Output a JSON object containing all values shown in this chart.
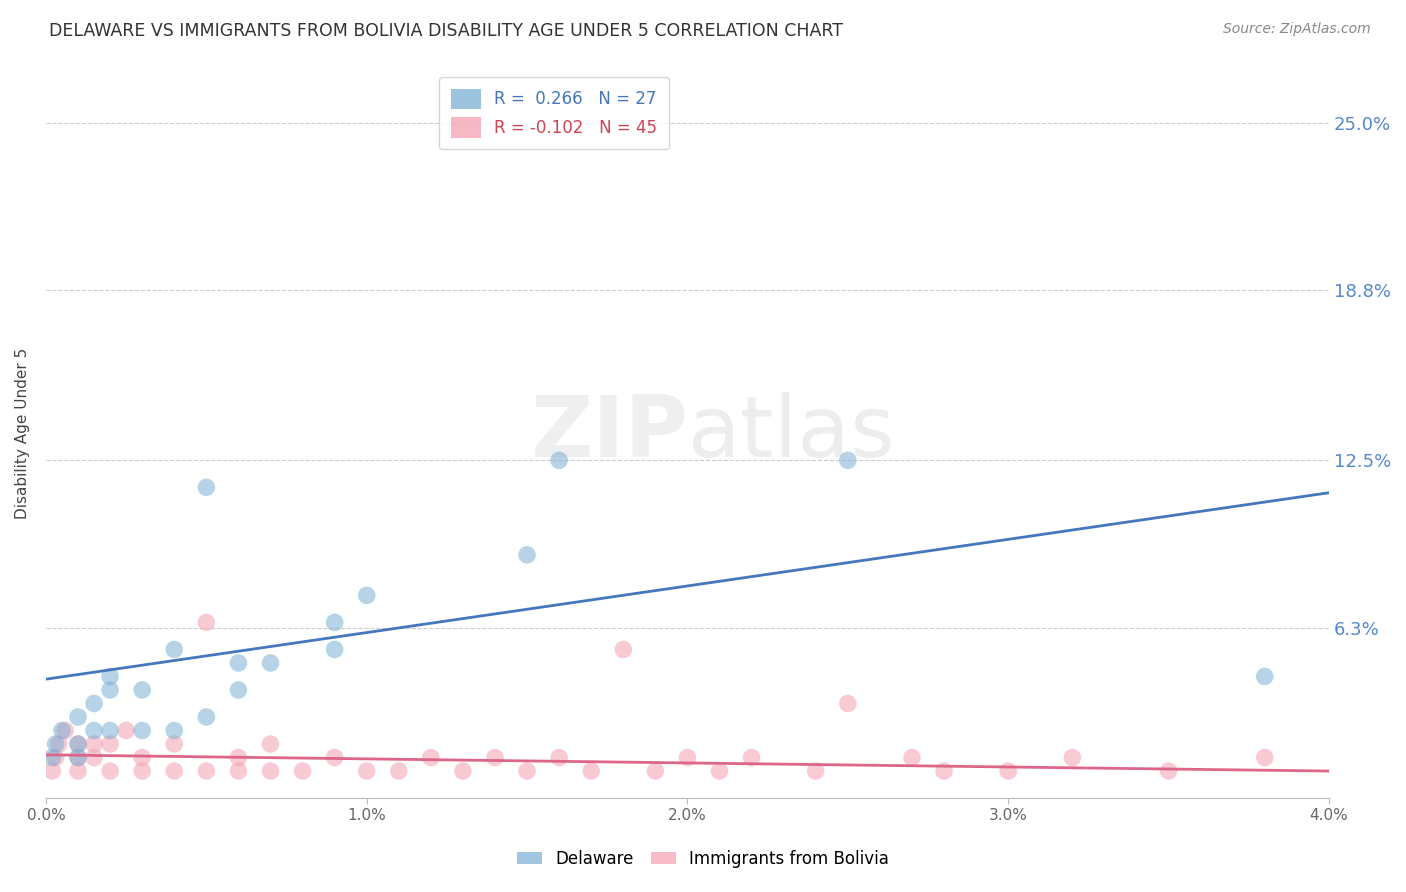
{
  "title": "DELAWARE VS IMMIGRANTS FROM BOLIVIA DISABILITY AGE UNDER 5 CORRELATION CHART",
  "source": "Source: ZipAtlas.com",
  "ylabel": "Disability Age Under 5",
  "xlim": [
    0.0,
    0.04
  ],
  "ylim": [
    0.0,
    0.27
  ],
  "xticks": [
    0.0,
    0.01,
    0.02,
    0.03,
    0.04
  ],
  "xtick_labels": [
    "0.0%",
    "1.0%",
    "2.0%",
    "3.0%",
    "4.0%"
  ],
  "ytick_labels_right": [
    "25.0%",
    "18.8%",
    "12.5%",
    "6.3%"
  ],
  "ytick_vals_right": [
    0.25,
    0.188,
    0.125,
    0.063
  ],
  "blue_color": "#7BAFD4",
  "pink_color": "#F4A0B0",
  "line_blue": "#4477BB",
  "line_pink": "#DD6688",
  "blue_line_x": [
    0.0,
    0.04
  ],
  "blue_line_y": [
    0.044,
    0.113
  ],
  "pink_line_x": [
    0.0,
    0.04
  ],
  "pink_line_y": [
    0.016,
    0.01
  ],
  "blue_scatter_x": [
    0.0002,
    0.0003,
    0.0005,
    0.001,
    0.001,
    0.001,
    0.0015,
    0.0015,
    0.002,
    0.002,
    0.002,
    0.003,
    0.003,
    0.004,
    0.004,
    0.005,
    0.005,
    0.006,
    0.006,
    0.007,
    0.009,
    0.009,
    0.01,
    0.015,
    0.016,
    0.025,
    0.038
  ],
  "blue_scatter_y": [
    0.015,
    0.02,
    0.025,
    0.015,
    0.02,
    0.03,
    0.025,
    0.035,
    0.025,
    0.04,
    0.045,
    0.025,
    0.04,
    0.025,
    0.055,
    0.03,
    0.115,
    0.04,
    0.05,
    0.05,
    0.055,
    0.065,
    0.075,
    0.09,
    0.125,
    0.125,
    0.045
  ],
  "pink_scatter_x": [
    0.0002,
    0.0003,
    0.0004,
    0.0006,
    0.001,
    0.001,
    0.001,
    0.0015,
    0.0015,
    0.002,
    0.002,
    0.0025,
    0.003,
    0.003,
    0.004,
    0.004,
    0.005,
    0.005,
    0.006,
    0.006,
    0.007,
    0.007,
    0.008,
    0.009,
    0.01,
    0.011,
    0.012,
    0.013,
    0.014,
    0.015,
    0.016,
    0.017,
    0.018,
    0.019,
    0.02,
    0.021,
    0.022,
    0.024,
    0.025,
    0.027,
    0.028,
    0.03,
    0.032,
    0.035,
    0.038
  ],
  "pink_scatter_y": [
    0.01,
    0.015,
    0.02,
    0.025,
    0.01,
    0.015,
    0.02,
    0.015,
    0.02,
    0.01,
    0.02,
    0.025,
    0.01,
    0.015,
    0.01,
    0.02,
    0.01,
    0.065,
    0.01,
    0.015,
    0.01,
    0.02,
    0.01,
    0.015,
    0.01,
    0.01,
    0.015,
    0.01,
    0.015,
    0.01,
    0.015,
    0.01,
    0.055,
    0.01,
    0.015,
    0.01,
    0.015,
    0.01,
    0.035,
    0.015,
    0.01,
    0.01,
    0.015,
    0.01,
    0.015
  ]
}
